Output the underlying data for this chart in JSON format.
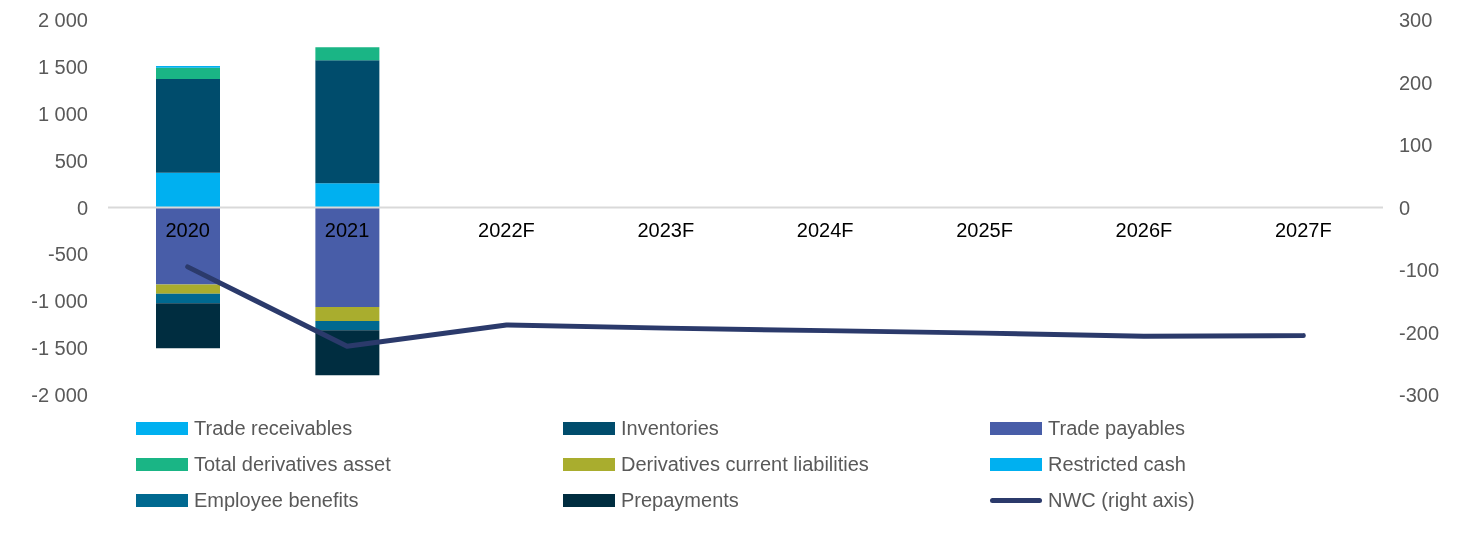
{
  "chart_data": {
    "type": "bar",
    "stacked": true,
    "categories": [
      "2020",
      "2021",
      "2022F",
      "2023F",
      "2024F",
      "2025F",
      "2026F",
      "2027F"
    ],
    "series": [
      {
        "name": "Trade receivables",
        "color": "#00b0f0",
        "values": [
          370,
          260,
          null,
          null,
          null,
          null,
          null,
          null
        ]
      },
      {
        "name": "Inventories",
        "color": "#004c6c",
        "values": [
          1000,
          1310,
          null,
          null,
          null,
          null,
          null,
          null
        ]
      },
      {
        "name": "Trade payables",
        "color": "#485da8",
        "values": [
          -820,
          -1060,
          null,
          null,
          null,
          null,
          null,
          null
        ]
      },
      {
        "name": "Total derivatives asset",
        "color": "#1ab585",
        "values": [
          120,
          140,
          null,
          null,
          null,
          null,
          null,
          null
        ]
      },
      {
        "name": "Derivatives current liabilities",
        "color": "#a9ad2e",
        "values": [
          -100,
          -150,
          null,
          null,
          null,
          null,
          null,
          null
        ]
      },
      {
        "name": "Restricted cash",
        "color": "#00b0f0",
        "values": [
          20,
          null,
          null,
          null,
          null,
          null,
          null,
          null
        ]
      },
      {
        "name": "Employee benefits",
        "color": "#006990",
        "values": [
          -100,
          -100,
          null,
          null,
          null,
          null,
          null,
          null
        ]
      },
      {
        "name": "Prepayments",
        "color": "#002d40",
        "values": [
          -480,
          -480,
          null,
          null,
          null,
          null,
          null,
          null
        ]
      },
      {
        "name": "NWC (right axis)",
        "type": "line",
        "axis": "y2",
        "color": "#2b3a6b",
        "values": [
          -95,
          -222,
          -188,
          -193,
          -197,
          -201,
          -206,
          -205
        ]
      }
    ],
    "ylim": [
      -2000,
      2000
    ],
    "yticks": [
      {
        "value": -2000,
        "label": "-2 000"
      },
      {
        "value": -1500,
        "label": "-1 500"
      },
      {
        "value": -1000,
        "label": "-1 000"
      },
      -500,
      0,
      500,
      {
        "value": 1000,
        "label": "1 000"
      },
      {
        "value": 1500,
        "label": "1 500"
      },
      {
        "value": 2000,
        "label": "2 000"
      }
    ],
    "y2lim": [
      -300,
      300
    ],
    "y2ticks": [
      -300,
      -200,
      -100,
      0,
      100,
      200,
      300
    ],
    "legend": "bottom",
    "marker": "none",
    "line_style": "solid"
  }
}
